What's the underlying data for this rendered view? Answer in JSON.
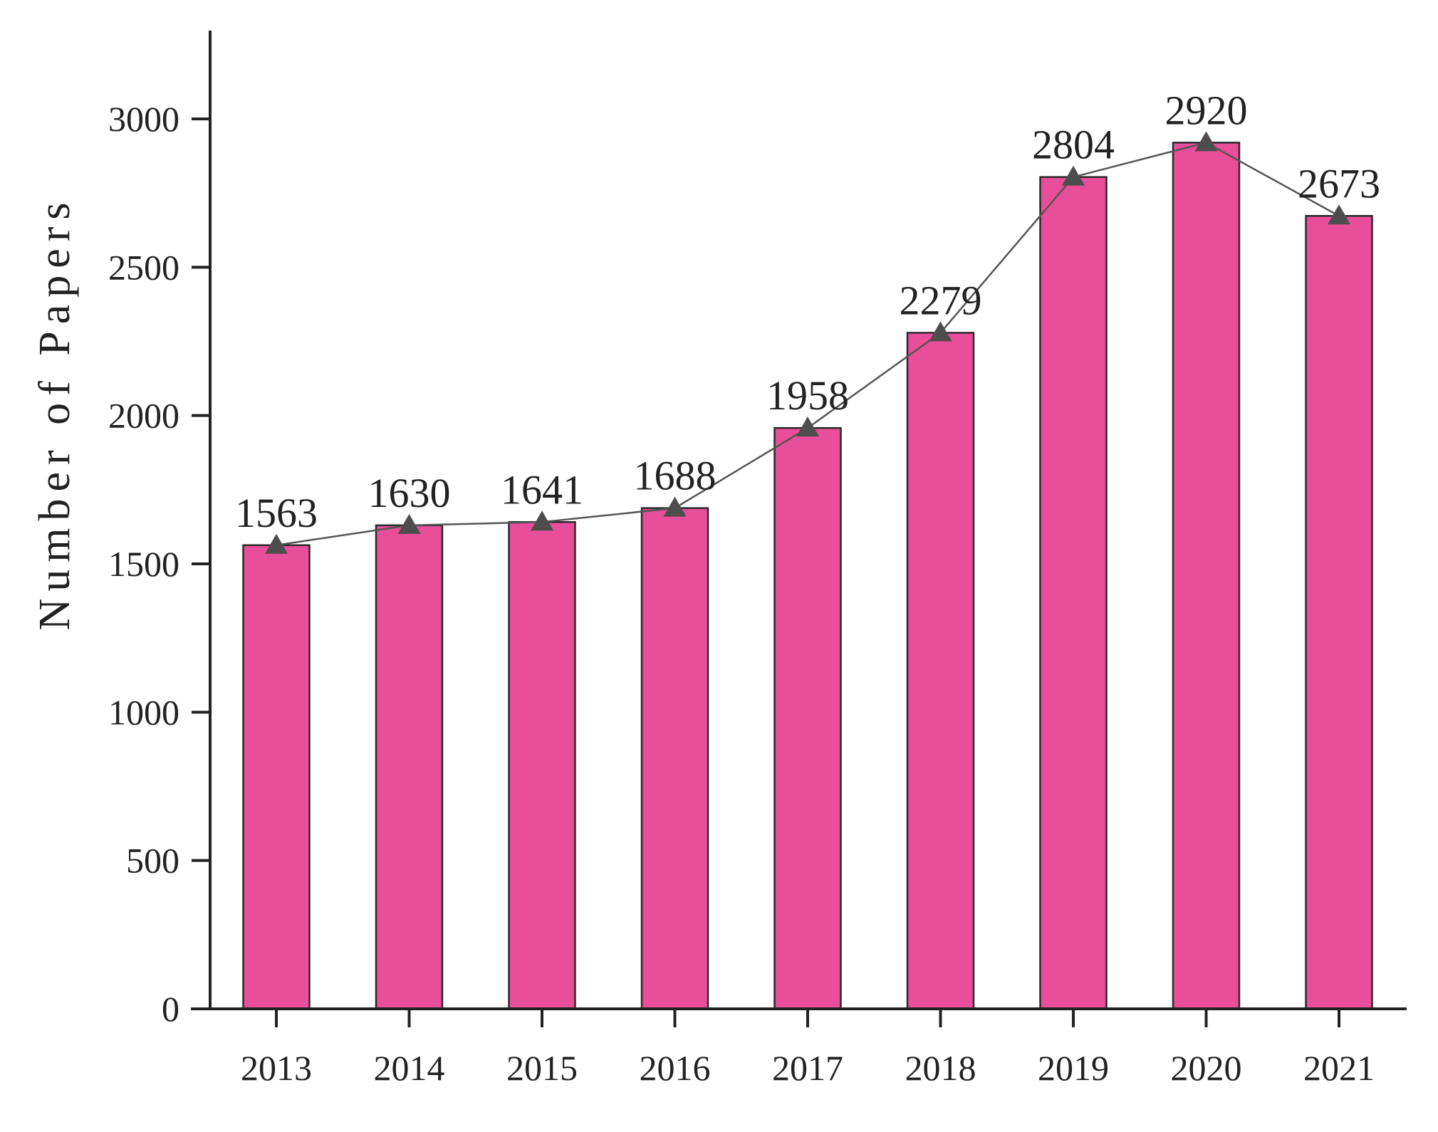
{
  "chart_data": {
    "type": "bar",
    "title": "",
    "xlabel": "",
    "ylabel": "Number of Papers",
    "categories": [
      "2013",
      "2014",
      "2015",
      "2016",
      "2017",
      "2018",
      "2019",
      "2020",
      "2021"
    ],
    "values": [
      1563,
      1630,
      1641,
      1688,
      1958,
      2279,
      2804,
      2920,
      2673
    ],
    "data_labels": [
      "1563",
      "1630",
      "1641",
      "1688",
      "1958",
      "2279",
      "2804",
      "2920",
      "2673"
    ],
    "yticks": [
      0,
      500,
      1000,
      1500,
      2000,
      2500,
      3000
    ],
    "ytick_labels": [
      "0",
      "500",
      "1000",
      "1500",
      "2000",
      "2500",
      "3000"
    ],
    "ylim": [
      0,
      3250
    ],
    "grid": false,
    "overlay": {
      "type": "line",
      "marker": "triangle",
      "values": [
        1563,
        1630,
        1641,
        1688,
        1958,
        2279,
        2804,
        2920,
        2673
      ]
    },
    "colors": {
      "bar_fill": "#E84E9A",
      "bar_edge": "#2a2a2a",
      "line": "#555555",
      "marker": "#4d4d4d",
      "axis": "#222222",
      "text": "#222222"
    }
  }
}
